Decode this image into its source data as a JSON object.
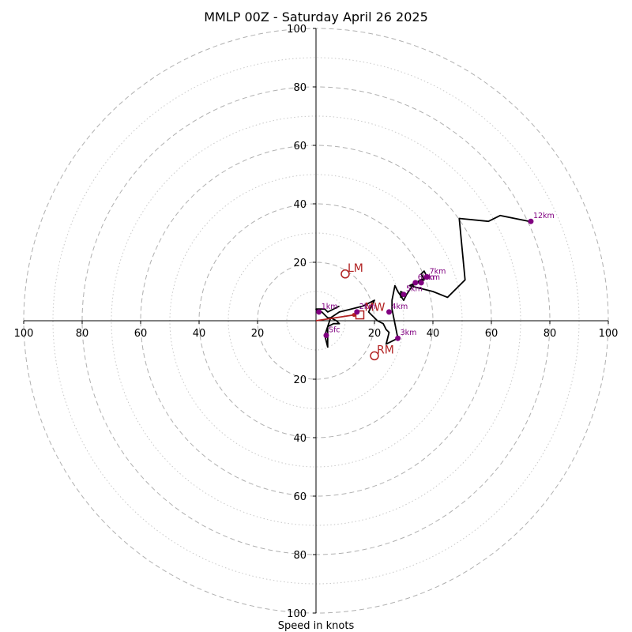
{
  "chart_data": {
    "type": "hodograph",
    "title": "MMLP 00Z - Saturday April 26 2025",
    "xlabel": "Speed in knots",
    "rlim": [
      0,
      100
    ],
    "major_rings": [
      20,
      40,
      60,
      80,
      100
    ],
    "minor_rings": [
      10,
      30,
      50,
      70,
      90
    ],
    "x_ticks": [
      {
        "v": -100,
        "label": "100"
      },
      {
        "v": -80,
        "label": "80"
      },
      {
        "v": -60,
        "label": "60"
      },
      {
        "v": -40,
        "label": "40"
      },
      {
        "v": -20,
        "label": "20"
      },
      {
        "v": 20,
        "label": "20"
      },
      {
        "v": 40,
        "label": "40"
      },
      {
        "v": 60,
        "label": "60"
      },
      {
        "v": 80,
        "label": "80"
      },
      {
        "v": 100,
        "label": "100"
      }
    ],
    "y_ticks": [
      {
        "v": 100,
        "label": "100"
      },
      {
        "v": 80,
        "label": "80"
      },
      {
        "v": 60,
        "label": "60"
      },
      {
        "v": 40,
        "label": "40"
      },
      {
        "v": 20,
        "label": "20"
      },
      {
        "v": -20,
        "label": "20"
      },
      {
        "v": -40,
        "label": "40"
      },
      {
        "v": -60,
        "label": "60"
      },
      {
        "v": -80,
        "label": "80"
      },
      {
        "v": -100,
        "label": "100"
      }
    ],
    "trace_color": "#000000",
    "trace": [
      [
        8,
        5
      ],
      [
        4,
        3
      ],
      [
        3,
        4
      ],
      [
        0,
        4
      ],
      [
        1,
        3
      ],
      [
        2,
        3
      ],
      [
        3,
        2
      ],
      [
        4,
        1
      ],
      [
        5,
        1
      ],
      [
        7,
        0
      ],
      [
        8,
        -1
      ],
      [
        6,
        -1
      ],
      [
        4,
        -2
      ],
      [
        4,
        -9
      ],
      [
        3,
        -5
      ],
      [
        5,
        1
      ],
      [
        8,
        3
      ],
      [
        12,
        4
      ],
      [
        16,
        5
      ],
      [
        18,
        6
      ],
      [
        20,
        7
      ],
      [
        19,
        5
      ],
      [
        18,
        3
      ],
      [
        19,
        2
      ],
      [
        20,
        1
      ],
      [
        21,
        0
      ],
      [
        23,
        -1
      ],
      [
        24,
        -3
      ],
      [
        25,
        -4
      ],
      [
        24,
        -8
      ],
      [
        28,
        -6
      ],
      [
        26,
        4
      ],
      [
        26,
        7
      ],
      [
        27,
        12
      ],
      [
        28,
        10
      ],
      [
        30,
        7
      ],
      [
        31,
        9
      ],
      [
        29,
        10
      ],
      [
        29,
        8
      ],
      [
        31,
        9
      ],
      [
        33,
        12
      ],
      [
        35,
        13
      ],
      [
        37,
        14
      ],
      [
        36,
        16
      ],
      [
        37,
        17
      ],
      [
        38,
        15
      ],
      [
        36,
        14
      ],
      [
        34,
        13
      ],
      [
        32,
        12
      ],
      [
        40,
        10
      ],
      [
        45,
        8
      ],
      [
        51,
        14
      ],
      [
        49,
        35
      ],
      [
        59,
        34
      ],
      [
        63,
        36
      ],
      [
        73,
        34
      ]
    ],
    "height_markers": [
      {
        "label": "Sfc",
        "u": 3.5,
        "v": -5
      },
      {
        "label": "1km",
        "u": 1,
        "v": 3
      },
      {
        "label": "2km",
        "u": 14,
        "v": 3
      },
      {
        "label": "3km",
        "u": 28,
        "v": -6
      },
      {
        "label": "4km",
        "u": 25,
        "v": 3
      },
      {
        "label": "5km",
        "u": 30,
        "v": 9
      },
      {
        "label": "6km",
        "u": 34,
        "v": 13
      },
      {
        "label": "6km",
        "u": 36,
        "v": 13
      },
      {
        "label": "7km",
        "u": 38,
        "v": 15
      },
      {
        "label": "12km",
        "u": 73.5,
        "v": 34
      }
    ],
    "height_color": "#800080",
    "storm_motion_color": "#b22222",
    "mean_wind_vector": {
      "from": [
        0,
        0
      ],
      "to": [
        13,
        2
      ]
    },
    "storm_motion": [
      {
        "label": "LM",
        "u": 10,
        "v": 16,
        "marker": "circle"
      },
      {
        "label": "RM",
        "u": 20,
        "v": -12,
        "marker": "circle"
      },
      {
        "label": "MW",
        "u": 15,
        "v": 2,
        "marker": "square"
      }
    ]
  }
}
